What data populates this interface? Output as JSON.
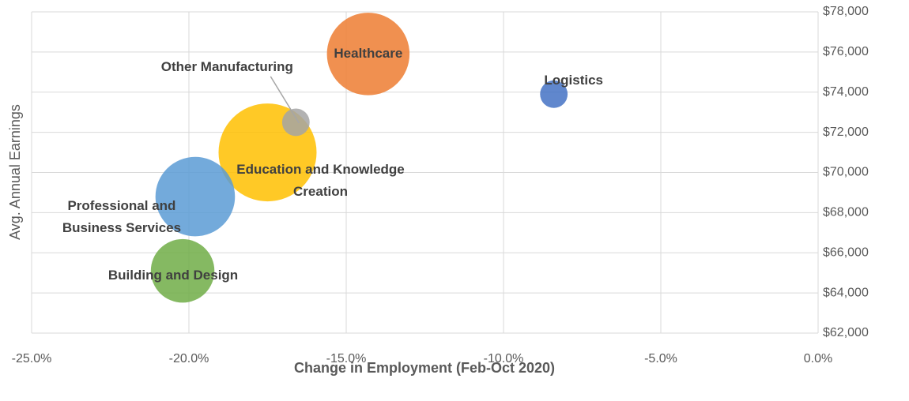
{
  "chart_data": {
    "type": "bubble",
    "x_label": "Change in Employment (Feb-Oct 2020)",
    "y_label": "Avg. Annual Earnings",
    "xlim": [
      -25,
      0
    ],
    "xticks": [
      {
        "value": -25,
        "label": "-25.0%"
      },
      {
        "value": -20,
        "label": "-20.0%"
      },
      {
        "value": -15,
        "label": "-15.0%"
      },
      {
        "value": -10,
        "label": "-10.0%"
      },
      {
        "value": -5,
        "label": "-5.0%"
      },
      {
        "value": 0,
        "label": "0.0%"
      }
    ],
    "ylim": [
      62000,
      78000
    ],
    "yticks": [
      {
        "value": 62000,
        "label": "$62,000"
      },
      {
        "value": 64000,
        "label": "$64,000"
      },
      {
        "value": 66000,
        "label": "$66,000"
      },
      {
        "value": 68000,
        "label": "$68,000"
      },
      {
        "value": 70000,
        "label": "$70,000"
      },
      {
        "value": 72000,
        "label": "$72,000"
      },
      {
        "value": 74000,
        "label": "$74,000"
      },
      {
        "value": 76000,
        "label": "$76,000"
      },
      {
        "value": 78000,
        "label": "$78,000"
      }
    ],
    "grid": true,
    "series": [
      {
        "name": "Education and Knowledge Creation",
        "color": "#FFC000",
        "x": -17.5,
        "y": 71000,
        "size": 38
      },
      {
        "name": "Professional and Business Services",
        "color": "#5B9BD5",
        "x": -19.8,
        "y": 68800,
        "size": 25
      },
      {
        "name": "Building and Design",
        "color": "#70AD47",
        "x": -20.2,
        "y": 65100,
        "size": 16
      },
      {
        "name": "Healthcare",
        "color": "#ED7D31",
        "x": -14.3,
        "y": 75900,
        "size": 27
      },
      {
        "name": "Logistics",
        "color": "#4472C4",
        "x": -8.4,
        "y": 73900,
        "size": 3
      },
      {
        "name": "Other Manufacturing",
        "color": "#A5A5A5",
        "x": -16.6,
        "y": 72500,
        "size": 3
      }
    ]
  }
}
